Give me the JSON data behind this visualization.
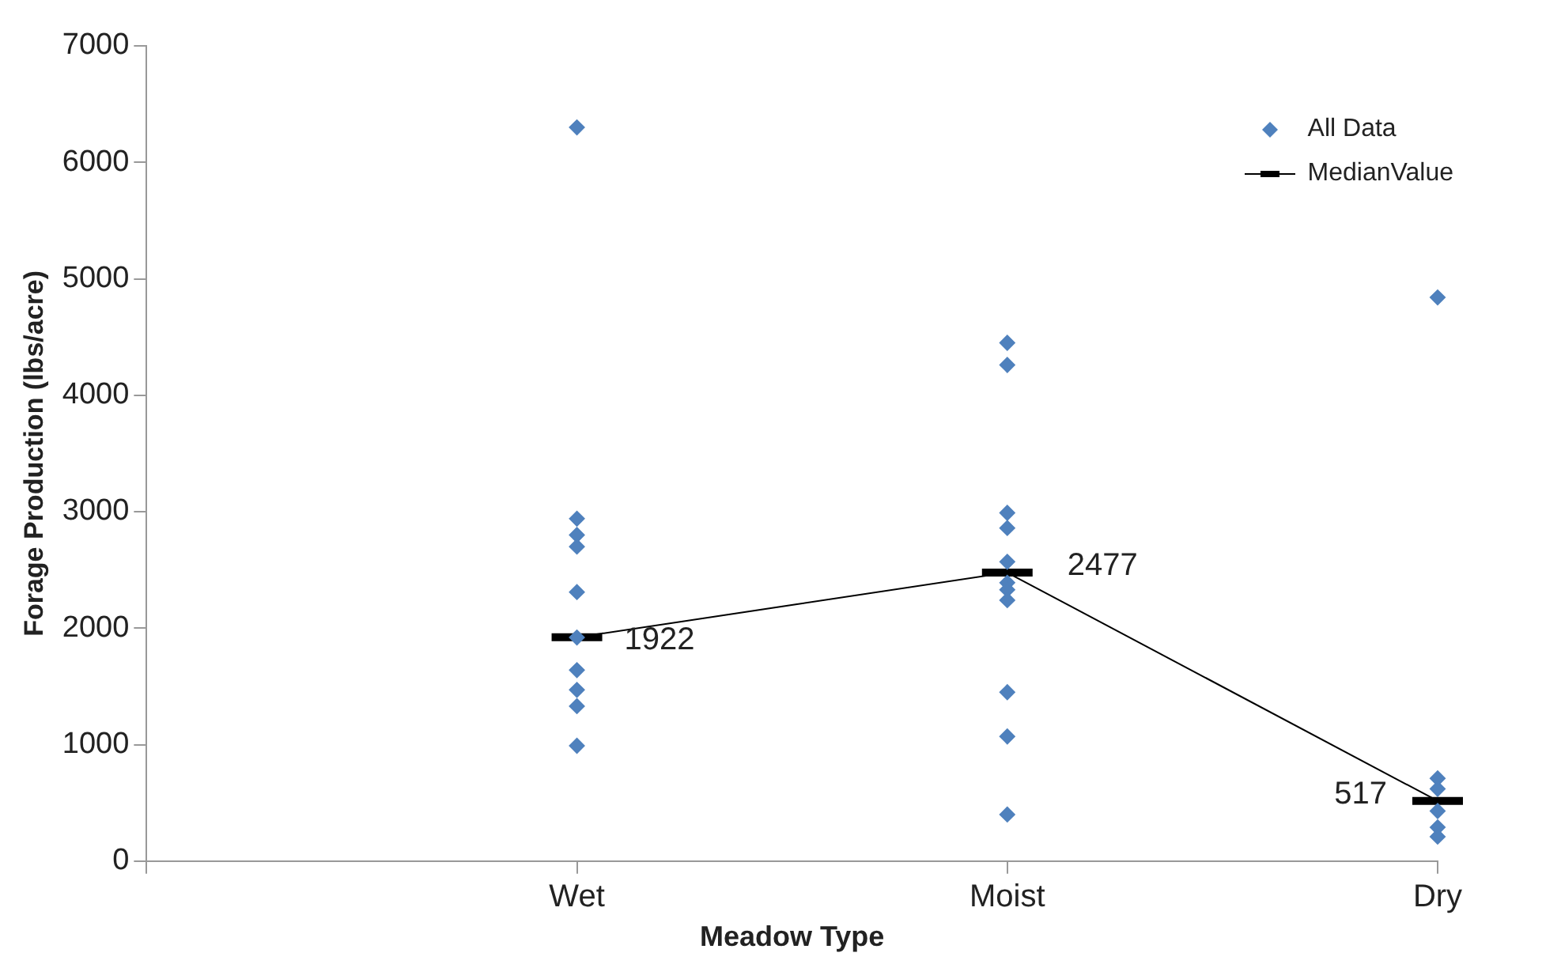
{
  "chart_data": {
    "type": "scatter",
    "xlabel": "Meadow Type",
    "ylabel": "Forage Production (lbs/acre)",
    "categories": [
      null,
      "Wet",
      "Moist",
      "Dry"
    ],
    "ylim": [
      0,
      7000
    ],
    "yticks": [
      0,
      1000,
      2000,
      3000,
      4000,
      5000,
      6000,
      7000
    ],
    "grid": false,
    "legend": "top right",
    "series": [
      {
        "name": "All Data",
        "type": "scatter",
        "marker": "diamond",
        "color": "#4f81bd",
        "x": [
          "Wet",
          "Wet",
          "Wet",
          "Wet",
          "Wet",
          "Wet",
          "Wet",
          "Wet",
          "Wet",
          "Wet",
          "Moist",
          "Moist",
          "Moist",
          "Moist",
          "Moist",
          "Moist",
          "Moist",
          "Moist",
          "Moist",
          "Moist",
          "Moist",
          "Dry",
          "Dry",
          "Dry",
          "Dry",
          "Dry",
          "Dry"
        ],
        "values": [
          6300,
          2940,
          2800,
          2700,
          2310,
          1920,
          1640,
          1470,
          1330,
          990,
          4450,
          4260,
          2990,
          2860,
          2570,
          2390,
          2330,
          2240,
          1450,
          1070,
          400,
          4840,
          710,
          620,
          430,
          290,
          210
        ]
      },
      {
        "name": "MedianValue",
        "type": "line",
        "marker": "none",
        "color": "#000000",
        "x": [
          "Wet",
          "Moist",
          "Dry"
        ],
        "values": [
          1922,
          2477,
          517
        ],
        "value_labels": [
          "1922",
          "2477",
          "517"
        ]
      }
    ]
  }
}
